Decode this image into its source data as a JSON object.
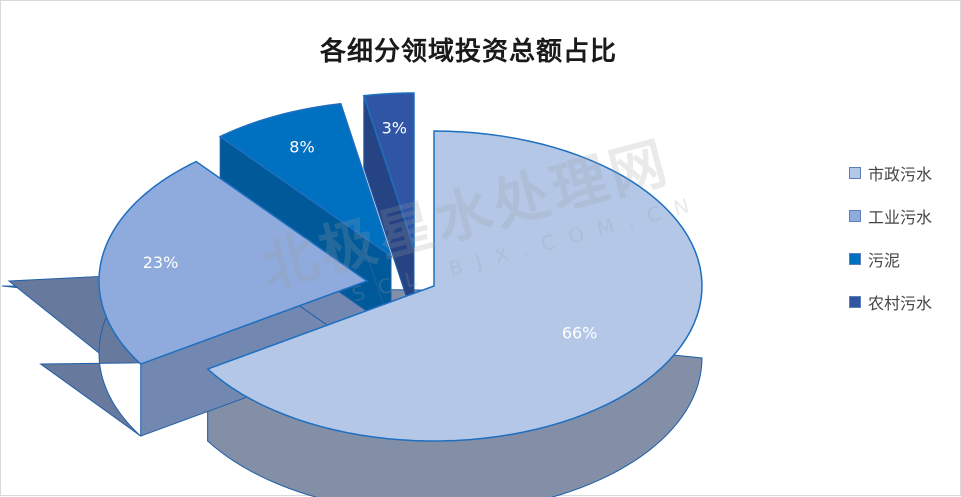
{
  "chart_data": {
    "type": "pie",
    "title": "各细分领域投资总额占比",
    "categories": [
      "市政污水",
      "工业污水",
      "污泥",
      "农村污水"
    ],
    "values": [
      66,
      23,
      8,
      3
    ],
    "value_labels": [
      "66%",
      "23%",
      "8%",
      "3%"
    ],
    "colors": [
      "#b4c7e7",
      "#8faadc",
      "#0070c0",
      "#2f55a4"
    ],
    "legend_position": "right",
    "style": "3d-exploded"
  },
  "watermark": {
    "main": "北极星水处理网",
    "sub": "SCL.BJX.COM.CN"
  }
}
